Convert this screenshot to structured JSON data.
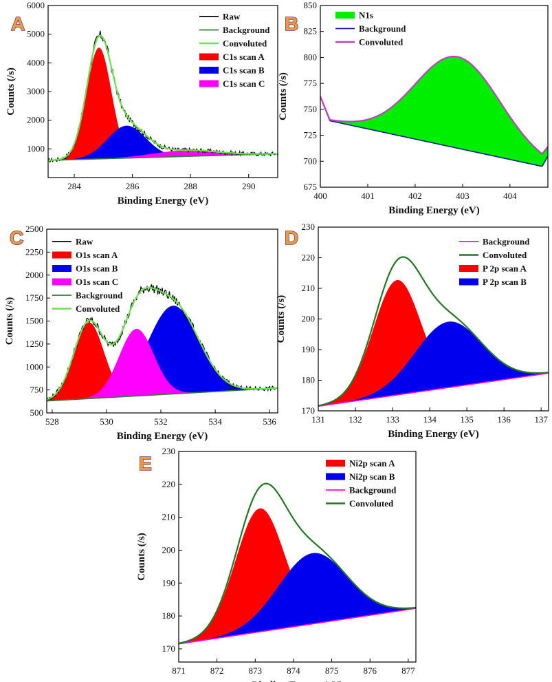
{
  "figure_title": "",
  "chart_data": [
    {
      "id": "A",
      "type": "area",
      "panel_label": "A",
      "xlabel": "Binding Energy (eV)",
      "ylabel": "Counts (/s)",
      "xlim": [
        283.1,
        291.0
      ],
      "ylim": [
        0,
        6000
      ],
      "xticks": [
        284,
        286,
        288,
        290
      ],
      "yticks": [
        1000,
        2000,
        3000,
        4000,
        5000,
        6000
      ],
      "legend_position": "top-right",
      "background": {
        "x": [
          283.1,
          291.0
        ],
        "y": [
          600,
          830
        ]
      },
      "series": [
        {
          "name": "Raw",
          "kind": "raw",
          "color": "#000000"
        },
        {
          "name": "Background",
          "kind": "background",
          "color": "#2f7d3a"
        },
        {
          "name": "Convoluted",
          "kind": "sum",
          "color": "#6be24a"
        },
        {
          "name": "C1s scan A",
          "kind": "peak",
          "color": "#ff0000",
          "center": 284.85,
          "height": 3880,
          "fwhm": 1.0
        },
        {
          "name": "C1s scan B",
          "kind": "peak",
          "color": "#0000ee",
          "center": 285.8,
          "height": 1130,
          "fwhm": 1.55
        },
        {
          "name": "C1s scan C",
          "kind": "peak",
          "color": "#ff00ff",
          "center": 287.8,
          "height": 210,
          "fwhm": 2.6
        }
      ]
    },
    {
      "id": "B",
      "type": "area",
      "panel_label": "B",
      "xlabel": "Binding Energy (eV)",
      "ylabel": "Counts (/s)",
      "xlim": [
        400.0,
        404.8
      ],
      "ylim": [
        675,
        850
      ],
      "xticks": [
        400,
        401,
        402,
        403,
        404
      ],
      "yticks": [
        675,
        700,
        725,
        750,
        775,
        800,
        825,
        850
      ],
      "legend_position": "top-left",
      "background": {
        "x": [
          400.0,
          400.2,
          404.68,
          404.8
        ],
        "y": [
          762,
          739,
          695,
          705
        ]
      },
      "series": [
        {
          "name": "N1s",
          "kind": "peak",
          "color": "#00ee00",
          "center": 402.9,
          "height": 88,
          "fwhm": 2.1
        },
        {
          "name": "Background",
          "kind": "background",
          "color": "#1a1a9c"
        },
        {
          "name": "Convoluted",
          "kind": "sum",
          "color": "#c040c0"
        }
      ]
    },
    {
      "id": "C",
      "type": "area",
      "panel_label": "C",
      "xlabel": "Binding Energy (eV)",
      "ylabel": "Counts (/s)",
      "xlim": [
        527.8,
        536.3
      ],
      "ylim": [
        500,
        2500
      ],
      "xticks": [
        528,
        530,
        532,
        534,
        536
      ],
      "yticks": [
        500,
        750,
        1000,
        1250,
        1500,
        1750,
        2000,
        2250,
        2500
      ],
      "legend_position": "top-left",
      "background": {
        "x": [
          527.8,
          536.3
        ],
        "y": [
          630,
          770
        ]
      },
      "series": [
        {
          "name": "Raw",
          "kind": "raw",
          "color": "#000000"
        },
        {
          "name": "O1s scan A",
          "kind": "peak",
          "color": "#ff0000",
          "center": 529.35,
          "height": 830,
          "fwhm": 1.3
        },
        {
          "name": "O1s scan B",
          "kind": "peak",
          "color": "#0000ee",
          "center": 532.45,
          "height": 960,
          "fwhm": 2.2
        },
        {
          "name": "O1s scan C",
          "kind": "peak",
          "color": "#ff00ff",
          "center": 531.1,
          "height": 730,
          "fwhm": 1.5
        },
        {
          "name": "Background",
          "kind": "background",
          "color": "#2f7d3a"
        },
        {
          "name": "Convoluted",
          "kind": "sum",
          "color": "#6be24a"
        }
      ]
    },
    {
      "id": "D",
      "type": "area",
      "panel_label": "D",
      "xlabel": "Binding Energy (eV)",
      "ylabel": "Counts (/s)",
      "xlim": [
        131.0,
        137.2
      ],
      "ylim": [
        170,
        230
      ],
      "xticks": [
        131,
        132,
        133,
        134,
        135,
        136,
        137
      ],
      "yticks": [
        170,
        180,
        190,
        200,
        210,
        220,
        230
      ],
      "legend_position": "top-right",
      "background": {
        "x": [
          131.0,
          137.2
        ],
        "y": [
          171.5,
          182.3
        ]
      },
      "series": [
        {
          "name": "Background",
          "kind": "background",
          "color": "#ff00ff"
        },
        {
          "name": "Convoluted",
          "kind": "sum",
          "color": "#1e7a1e"
        },
        {
          "name": "P 2p scan A",
          "kind": "peak",
          "color": "#ff0000",
          "center": 133.12,
          "height": 37.5,
          "fwhm": 1.5
        },
        {
          "name": "P 2p scan B",
          "kind": "peak",
          "color": "#0000ee",
          "center": 134.5,
          "height": 21.5,
          "fwhm": 2.1
        }
      ]
    },
    {
      "id": "E",
      "type": "area",
      "panel_label": "E",
      "xlabel": "Binding Energy (eV)",
      "ylabel": "Counts (/s)",
      "xlim": [
        871.0,
        877.2
      ],
      "ylim": [
        166,
        230
      ],
      "xticks": [
        871,
        872,
        873,
        874,
        875,
        876,
        877
      ],
      "yticks": [
        170,
        180,
        190,
        200,
        210,
        220,
        230
      ],
      "legend_position": "top-right",
      "background": {
        "x": [
          871.0,
          877.2
        ],
        "y": [
          171.5,
          182.3
        ]
      },
      "series": [
        {
          "name": "Ni2p scan A",
          "kind": "peak",
          "color": "#ff0000",
          "center": 873.12,
          "height": 37.5,
          "fwhm": 1.5
        },
        {
          "name": "Ni2p scan B",
          "kind": "peak",
          "color": "#0000ee",
          "center": 874.5,
          "height": 21.5,
          "fwhm": 2.1
        },
        {
          "name": "Background",
          "kind": "background",
          "color": "#ff00ff"
        },
        {
          "name": "Convoluted",
          "kind": "sum",
          "color": "#1e7a1e"
        }
      ]
    }
  ]
}
